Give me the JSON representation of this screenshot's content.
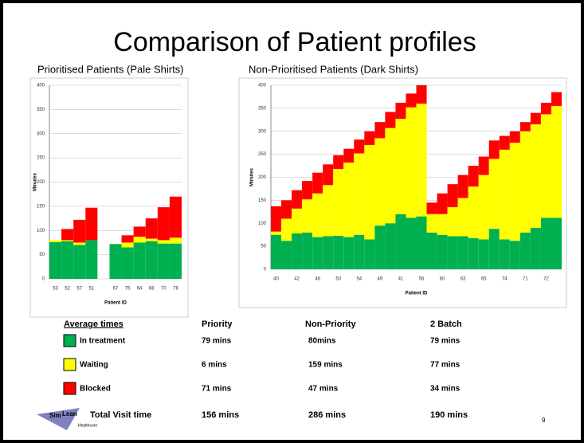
{
  "title": "Comparison of Patient profiles",
  "chart_data": [
    {
      "type": "stacked_bar",
      "title": "Prioritised Patients (Pale Shirts)",
      "y_label": "Minutes",
      "x_label": "Patient ID",
      "categories": [
        "53",
        "52",
        "57",
        "51",
        null,
        "67",
        "75",
        "64",
        "68",
        "70",
        "76"
      ],
      "series": [
        {
          "name": "In treatment",
          "color": "#00b050",
          "values": [
            76,
            78,
            70,
            80,
            null,
            72,
            65,
            75,
            78,
            73,
            73
          ]
        },
        {
          "name": "Waiting",
          "color": "#ffff00",
          "values": [
            4,
            2,
            5,
            0,
            null,
            0,
            10,
            12,
            5,
            7,
            12
          ]
        },
        {
          "name": "Blocked",
          "color": "#ff0000",
          "values": [
            0,
            23,
            47,
            67,
            null,
            0,
            15,
            21,
            42,
            68,
            85
          ]
        }
      ],
      "ylim": [
        0,
        400
      ],
      "yticks": [
        0,
        50,
        100,
        150,
        200,
        250,
        300,
        350,
        400
      ],
      "grid": true
    },
    {
      "type": "stacked_bar",
      "title": "Non-Prioritised Patients (Dark Shirts)",
      "y_label": "Minutes",
      "x_label": "Patient ID",
      "categories": [
        "40",
        null,
        "42",
        null,
        "46",
        null,
        "50",
        null,
        "54",
        null,
        "49",
        null,
        "41",
        null,
        "56",
        null,
        "60",
        null,
        "63",
        null,
        "65",
        null,
        "74",
        null,
        "71",
        null,
        "72",
        null
      ],
      "series": [
        {
          "color": "#00b050",
          "values": [
            75,
            62,
            78,
            80,
            70,
            72,
            73,
            70,
            75,
            65,
            95,
            100,
            120,
            112,
            115,
            80,
            75,
            72,
            72,
            68,
            65,
            88,
            65,
            62,
            80,
            90,
            112,
            112
          ]
        },
        {
          "color": "#ffff00",
          "values": [
            7,
            48,
            54,
            72,
            95,
            111,
            145,
            162,
            177,
            205,
            190,
            207,
            207,
            240,
            245,
            40,
            45,
            63,
            83,
            112,
            140,
            152,
            195,
            213,
            220,
            225,
            225,
            243
          ]
        },
        {
          "color": "#ff0000",
          "values": [
            55,
            40,
            40,
            40,
            45,
            45,
            30,
            30,
            30,
            30,
            35,
            35,
            35,
            30,
            40,
            25,
            45,
            50,
            50,
            45,
            40,
            40,
            30,
            25,
            20,
            25,
            25,
            30
          ]
        }
      ],
      "ylim": [
        0,
        400
      ],
      "yticks": [
        0,
        50,
        100,
        150,
        200,
        250,
        300,
        350,
        400
      ],
      "grid": true
    }
  ],
  "table": {
    "header": [
      "Average times",
      "Priority",
      "Non-Priority",
      "2 Batch"
    ],
    "rows": [
      [
        "79 mins",
        "80mins",
        "79 mins"
      ],
      [
        "6 mins",
        "159 mins",
        "77 mins"
      ],
      [
        "71 mins",
        "47 mins",
        "34 mins"
      ]
    ],
    "total": [
      "Total Visit time",
      "156  mins",
      "286 mins",
      "190 mins"
    ]
  },
  "logo": [
    "Sim",
    "Lean",
    "Healthcare"
  ],
  "page_number": "9"
}
